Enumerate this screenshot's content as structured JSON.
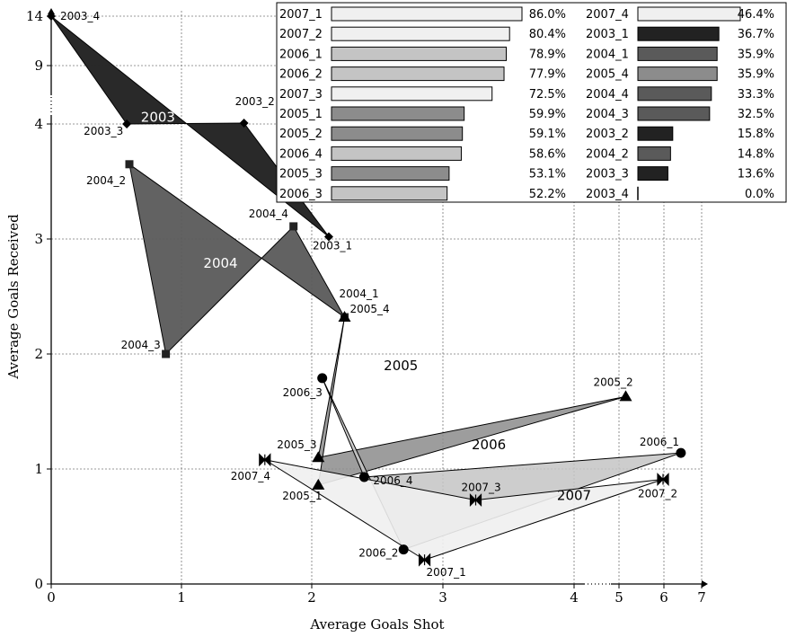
{
  "chart_data": {
    "type": "scatter",
    "title": "",
    "xlabel": "Average Goals Shot",
    "ylabel": "Average Goals Received",
    "x_ticks": [
      "0",
      "1",
      "2",
      "3",
      "4",
      "5",
      "6",
      "7"
    ],
    "y_ticks": [
      "0",
      "1",
      "2",
      "3",
      "4",
      "9",
      "14"
    ],
    "grid": true,
    "legend_position": "top-right",
    "colors": {
      "2003": "#222222",
      "2004": "#5a5a5a",
      "2005": "#8c8c8c",
      "2006": "#c4c4c4",
      "2007": "#f0f0f0"
    },
    "groups": [
      {
        "name": "2003",
        "marker": "diamond",
        "points": [
          {
            "label": "2003_1",
            "x": 2.13,
            "y": 3.02
          },
          {
            "label": "2003_2",
            "x": 1.48,
            "y": 4.08
          },
          {
            "label": "2003_3",
            "x": 0.58,
            "y": 4.0
          },
          {
            "label": "2003_4",
            "x": 0.0,
            "y": 14.0
          }
        ]
      },
      {
        "name": "2004",
        "marker": "square",
        "points": [
          {
            "label": "2004_1",
            "x": 2.25,
            "y": 2.32
          },
          {
            "label": "2004_2",
            "x": 0.6,
            "y": 3.65
          },
          {
            "label": "2004_3",
            "x": 0.88,
            "y": 2.0
          },
          {
            "label": "2004_4",
            "x": 1.86,
            "y": 3.11
          }
        ]
      },
      {
        "name": "2005",
        "marker": "triangle",
        "points": [
          {
            "label": "2005_1",
            "x": 2.05,
            "y": 0.86
          },
          {
            "label": "2005_2",
            "x": 5.15,
            "y": 1.63
          },
          {
            "label": "2005_3",
            "x": 2.05,
            "y": 1.1
          },
          {
            "label": "2005_4",
            "x": 2.25,
            "y": 2.32
          }
        ]
      },
      {
        "name": "2006",
        "marker": "circle",
        "points": [
          {
            "label": "2006_1",
            "x": 6.45,
            "y": 1.14
          },
          {
            "label": "2006_2",
            "x": 2.7,
            "y": 0.3
          },
          {
            "label": "2006_3",
            "x": 2.08,
            "y": 1.79
          },
          {
            "label": "2006_4",
            "x": 2.4,
            "y": 0.93
          }
        ]
      },
      {
        "name": "2007",
        "marker": "bowtie",
        "points": [
          {
            "label": "2007_1",
            "x": 2.86,
            "y": 0.21
          },
          {
            "label": "2007_2",
            "x": 5.98,
            "y": 0.91
          },
          {
            "label": "2007_3",
            "x": 3.25,
            "y": 0.73
          },
          {
            "label": "2007_4",
            "x": 1.64,
            "y": 1.08
          }
        ]
      }
    ],
    "bars": [
      {
        "label": "2007_1",
        "value": 86.0,
        "text": "86.0%"
      },
      {
        "label": "2007_2",
        "value": 80.4,
        "text": "80.4%"
      },
      {
        "label": "2006_1",
        "value": 78.9,
        "text": "78.9%"
      },
      {
        "label": "2006_2",
        "value": 77.9,
        "text": "77.9%"
      },
      {
        "label": "2007_3",
        "value": 72.5,
        "text": "72.5%"
      },
      {
        "label": "2005_1",
        "value": 59.9,
        "text": "59.9%"
      },
      {
        "label": "2005_2",
        "value": 59.1,
        "text": "59.1%"
      },
      {
        "label": "2006_4",
        "value": 58.6,
        "text": "58.6%"
      },
      {
        "label": "2005_3",
        "value": 53.1,
        "text": "53.1%"
      },
      {
        "label": "2006_3",
        "value": 52.2,
        "text": "52.2%"
      },
      {
        "label": "2007_4",
        "value": 46.4,
        "text": "46.4%"
      },
      {
        "label": "2003_1",
        "value": 36.7,
        "text": "36.7%"
      },
      {
        "label": "2004_1",
        "value": 35.9,
        "text": "35.9%"
      },
      {
        "label": "2005_4",
        "value": 35.9,
        "text": "35.9%"
      },
      {
        "label": "2004_4",
        "value": 33.3,
        "text": "33.3%"
      },
      {
        "label": "2004_3",
        "value": 32.5,
        "text": "32.5%"
      },
      {
        "label": "2003_2",
        "value": 15.8,
        "text": "15.8%"
      },
      {
        "label": "2004_2",
        "value": 14.8,
        "text": "14.8%"
      },
      {
        "label": "2003_3",
        "value": 13.6,
        "text": "13.6%"
      },
      {
        "label": "2003_4",
        "value": 0.0,
        "text": "0.0%"
      }
    ]
  }
}
